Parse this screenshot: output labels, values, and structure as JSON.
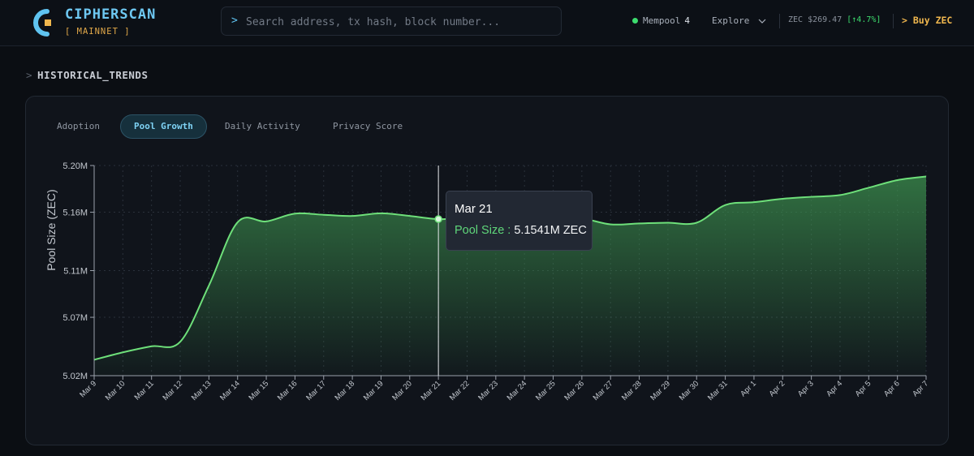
{
  "header": {
    "brand": "CIPHERSCAN",
    "network": "[ MAINNET ]",
    "search_prompt": ">",
    "search_placeholder": "Search address, tx hash, block number...",
    "mempool_label": "Mempool",
    "mempool_count": "4",
    "explore_label": "Explore",
    "price_label": "ZEC $269.47",
    "price_change": "[↑4.7%]",
    "buy_prompt": ">",
    "buy_label": "Buy ZEC"
  },
  "section": {
    "prompt": ">",
    "title": "HISTORICAL_TRENDS"
  },
  "tabs": [
    {
      "label": "Adoption",
      "active": false
    },
    {
      "label": "Pool Growth",
      "active": true
    },
    {
      "label": "Daily Activity",
      "active": false
    },
    {
      "label": "Privacy Score",
      "active": false
    }
  ],
  "tooltip": {
    "date": "Mar 21",
    "series_label": "Pool Size :",
    "value": "5.1541M ZEC"
  },
  "colors": {
    "line": "#6ee07a",
    "accent": "#6ec8f2",
    "buy": "#f0b74e",
    "positive": "#3ddc6e"
  },
  "chart_data": {
    "type": "area",
    "ylabel": "Pool Size (ZEC)",
    "y_unit": "M",
    "ylim": [
      5.02,
      5.2
    ],
    "y_ticks": [
      5.02,
      5.07,
      5.11,
      5.16,
      5.2
    ],
    "y_tick_labels": [
      "5.02M",
      "5.07M",
      "5.11M",
      "5.16M",
      "5.20M"
    ],
    "grid": true,
    "categories": [
      "Mar 9",
      "Mar 10",
      "Mar 11",
      "Mar 12",
      "Mar 13",
      "Mar 14",
      "Mar 15",
      "Mar 16",
      "Mar 17",
      "Mar 18",
      "Mar 19",
      "Mar 20",
      "Mar 21",
      "Mar 22",
      "Mar 23",
      "Mar 24",
      "Mar 25",
      "Mar 26",
      "Mar 27",
      "Mar 28",
      "Mar 29",
      "Mar 30",
      "Mar 31",
      "Apr 1",
      "Apr 2",
      "Apr 3",
      "Apr 4",
      "Apr 5",
      "Apr 6",
      "Apr 7"
    ],
    "series": [
      {
        "values": [
          5.0336,
          5.04,
          5.0452,
          5.0491,
          5.0972,
          5.1514,
          5.1521,
          5.1588,
          5.1578,
          5.1568,
          5.1591,
          5.1568,
          5.1541,
          5.1553,
          5.1551,
          5.1552,
          5.1553,
          5.1547,
          5.1496,
          5.1504,
          5.151,
          5.151,
          5.1662,
          5.1686,
          5.1715,
          5.1732,
          5.1747,
          5.181,
          5.1875,
          5.1906
        ]
      }
    ],
    "highlight_index": 12
  }
}
